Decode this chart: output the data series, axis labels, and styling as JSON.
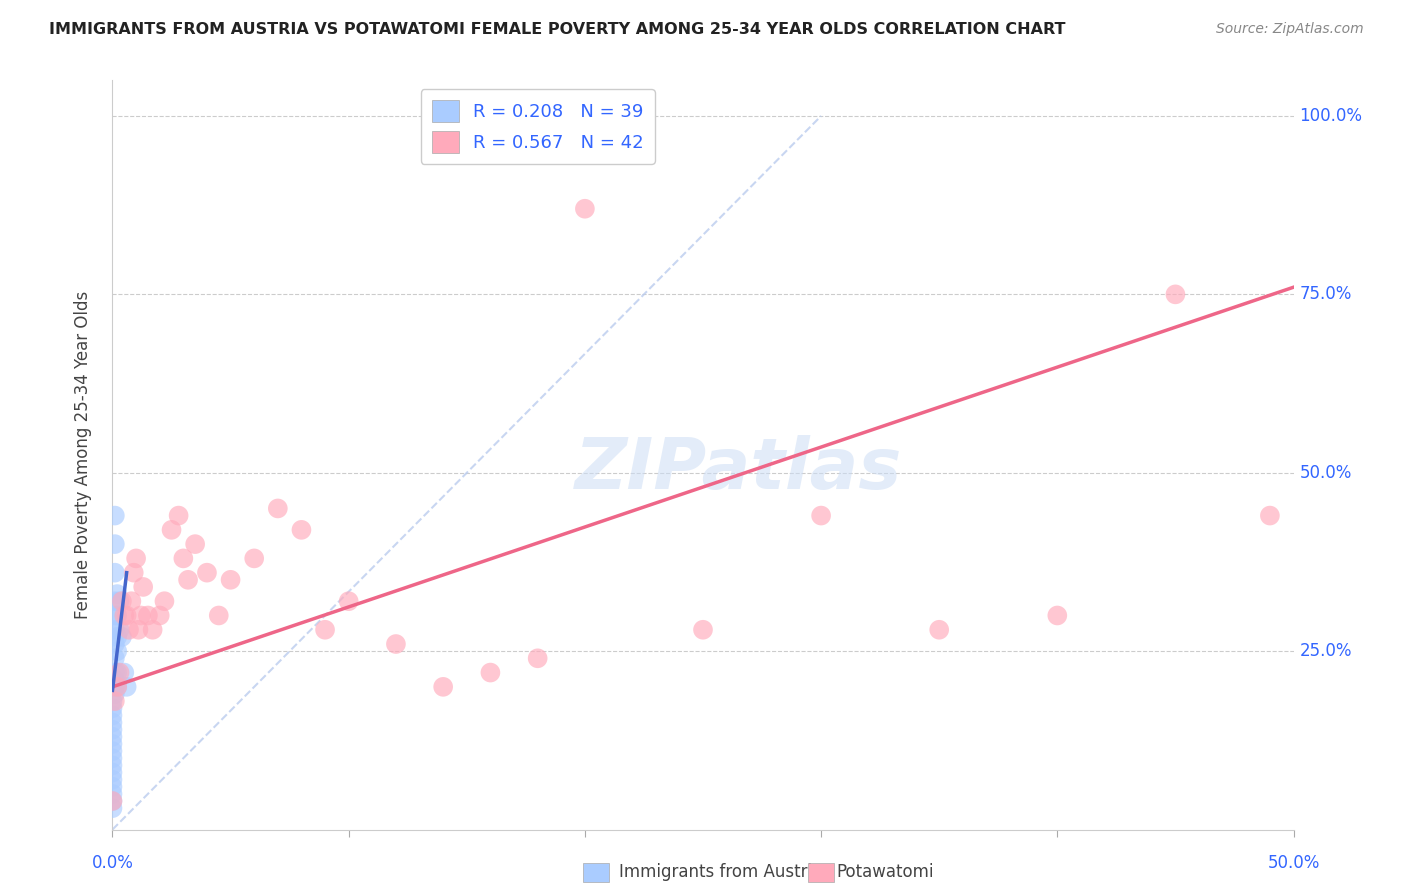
{
  "title": "IMMIGRANTS FROM AUSTRIA VS POTAWATOMI FEMALE POVERTY AMONG 25-34 YEAR OLDS CORRELATION CHART",
  "source": "Source: ZipAtlas.com",
  "ylabel": "Female Poverty Among 25-34 Year Olds",
  "ytick_labels": [
    "100.0%",
    "75.0%",
    "50.0%",
    "25.0%"
  ],
  "ytick_positions": [
    1.0,
    0.75,
    0.5,
    0.25
  ],
  "xlim": [
    0.0,
    0.5
  ],
  "ylim": [
    0.0,
    1.05
  ],
  "watermark": "ZIPatlas",
  "legend_r1": "R = 0.208",
  "legend_n1": "N = 39",
  "legend_r2": "R = 0.567",
  "legend_n2": "N = 42",
  "series1_color": "#aaccff",
  "series2_color": "#ffaabb",
  "trendline1_color": "#4466cc",
  "trendline2_color": "#ee6688",
  "diagonal_color": "#bbccee",
  "background_color": "#ffffff",
  "grid_color": "#cccccc",
  "austria_x": [
    0.0,
    0.0,
    0.0,
    0.0,
    0.0,
    0.0,
    0.0,
    0.0,
    0.0,
    0.0,
    0.0,
    0.0,
    0.0,
    0.0,
    0.0,
    0.0,
    0.001,
    0.001,
    0.001,
    0.001,
    0.001,
    0.001,
    0.001,
    0.001,
    0.001,
    0.001,
    0.001,
    0.001,
    0.002,
    0.002,
    0.002,
    0.002,
    0.002,
    0.002,
    0.003,
    0.003,
    0.004,
    0.005,
    0.006
  ],
  "austria_y": [
    0.03,
    0.04,
    0.05,
    0.06,
    0.07,
    0.08,
    0.09,
    0.1,
    0.11,
    0.12,
    0.13,
    0.14,
    0.15,
    0.16,
    0.17,
    0.18,
    0.19,
    0.2,
    0.21,
    0.22,
    0.24,
    0.26,
    0.28,
    0.3,
    0.32,
    0.36,
    0.4,
    0.44,
    0.2,
    0.22,
    0.25,
    0.27,
    0.3,
    0.33,
    0.28,
    0.32,
    0.27,
    0.22,
    0.2
  ],
  "potawatomi_x": [
    0.0,
    0.001,
    0.002,
    0.003,
    0.004,
    0.005,
    0.006,
    0.007,
    0.008,
    0.009,
    0.01,
    0.011,
    0.012,
    0.013,
    0.015,
    0.017,
    0.02,
    0.022,
    0.025,
    0.028,
    0.03,
    0.032,
    0.035,
    0.04,
    0.045,
    0.05,
    0.06,
    0.07,
    0.08,
    0.09,
    0.1,
    0.12,
    0.14,
    0.16,
    0.18,
    0.2,
    0.25,
    0.3,
    0.35,
    0.4,
    0.45,
    0.49
  ],
  "potawatomi_y": [
    0.04,
    0.18,
    0.2,
    0.22,
    0.32,
    0.3,
    0.3,
    0.28,
    0.32,
    0.36,
    0.38,
    0.28,
    0.3,
    0.34,
    0.3,
    0.28,
    0.3,
    0.32,
    0.42,
    0.44,
    0.38,
    0.35,
    0.4,
    0.36,
    0.3,
    0.35,
    0.38,
    0.45,
    0.42,
    0.28,
    0.32,
    0.26,
    0.2,
    0.22,
    0.24,
    0.87,
    0.28,
    0.44,
    0.28,
    0.3,
    0.75,
    0.44
  ],
  "trendline2_x": [
    0.0,
    0.5
  ],
  "trendline2_y": [
    0.2,
    0.76
  ],
  "trendline1_x": [
    0.0,
    0.006
  ],
  "trendline1_y": [
    0.195,
    0.36
  ]
}
